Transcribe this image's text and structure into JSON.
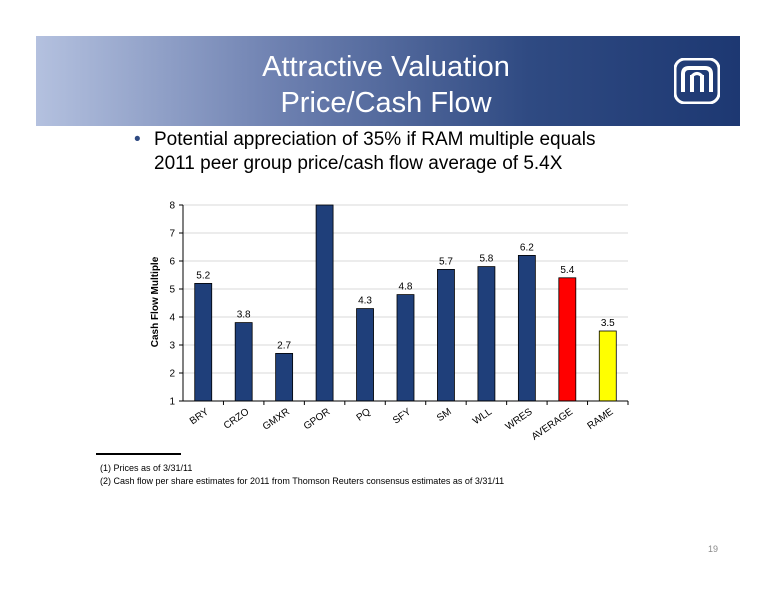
{
  "header": {
    "title_line1": "Attractive Valuation",
    "title_line2": "Price/Cash Flow"
  },
  "bullet": {
    "line1": "Potential appreciation of 35% if RAM multiple equals",
    "line2": "2011 peer group price/cash flow average of 5.4X"
  },
  "chart_data": {
    "type": "bar",
    "categories": [
      "BRY",
      "CRZO",
      "GMXR",
      "GPOR",
      "PQ",
      "SFY",
      "SM",
      "WLL",
      "WRES",
      "AVERAGE",
      "RAME"
    ],
    "values": [
      5.2,
      3.8,
      2.7,
      8.0,
      4.3,
      4.8,
      5.7,
      5.8,
      6.2,
      5.4,
      3.5
    ],
    "data_labels": [
      "5.2",
      "3.8",
      "2.7",
      "",
      "4.3",
      "4.8",
      "5.7",
      "5.8",
      "6.2",
      "5.4",
      "3.5"
    ],
    "bar_colors": [
      "#1f3f7a",
      "#1f3f7a",
      "#1f3f7a",
      "#1f3f7a",
      "#1f3f7a",
      "#1f3f7a",
      "#1f3f7a",
      "#1f3f7a",
      "#1f3f7a",
      "#ff0000",
      "#ffff00"
    ],
    "ylabel": "Cash Flow Multiple",
    "ylim": [
      1,
      8
    ],
    "yticks": [
      1,
      2,
      3,
      4,
      5,
      6,
      7,
      8
    ],
    "grid": true
  },
  "footnotes": [
    "(1)  Prices as of  3/31/11",
    "(2)  Cash flow per share estimates for 2011 from Thomson Reuters consensus estimates as of 3/31/11"
  ],
  "page_number": "19",
  "colors": {
    "banner_dark": "#1d3872",
    "banner_light": "#b4c1df",
    "bar": "#1f3f7a"
  }
}
